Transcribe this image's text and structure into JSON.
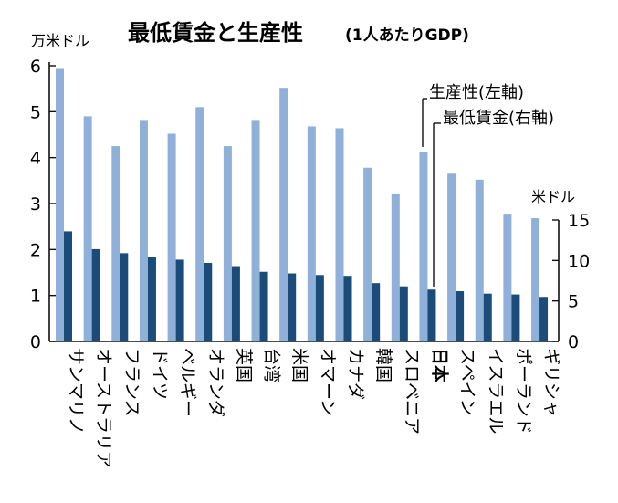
{
  "chart_data": {
    "type": "bar",
    "title": "最低賃金と生産性",
    "subtitle": "(1人あたりGDP)",
    "categories": [
      "サンマリノ",
      "オーストラリア",
      "フランス",
      "ドイツ",
      "ベルギー",
      "オランダ",
      "英国",
      "台湾",
      "米国",
      "オマーン",
      "カナダ",
      "韓国",
      "スロベニア",
      "日本",
      "スペイン",
      "イスラエル",
      "ポーランド",
      "ギリシャ"
    ],
    "highlight_category": "日本",
    "left_axis": {
      "unit": "万米ドル",
      "ylim": [
        0,
        6
      ],
      "ticks": [
        "0",
        "1",
        "2",
        "3",
        "4",
        "5",
        "6"
      ]
    },
    "right_axis": {
      "unit": "米ドル",
      "ylim": [
        0,
        15
      ],
      "ticks": [
        "0",
        "5",
        "10",
        "15"
      ]
    },
    "series": [
      {
        "name": "生産性(左軸)",
        "axis": "left",
        "color": "#8eb0d9",
        "values": [
          5.93,
          4.9,
          4.25,
          4.82,
          4.52,
          5.1,
          4.25,
          4.82,
          5.52,
          4.68,
          4.64,
          3.78,
          3.22,
          4.13,
          3.65,
          3.52,
          2.78,
          2.68
        ]
      },
      {
        "name": "最低賃金(右軸)",
        "axis": "right",
        "color": "#1b4b79",
        "values": [
          13.6,
          11.4,
          10.9,
          10.4,
          10.1,
          9.7,
          9.3,
          8.6,
          8.4,
          8.2,
          8.1,
          7.2,
          6.8,
          6.4,
          6.2,
          5.9,
          5.8,
          5.5
        ]
      }
    ],
    "grid": false,
    "legend": "callout-right"
  }
}
